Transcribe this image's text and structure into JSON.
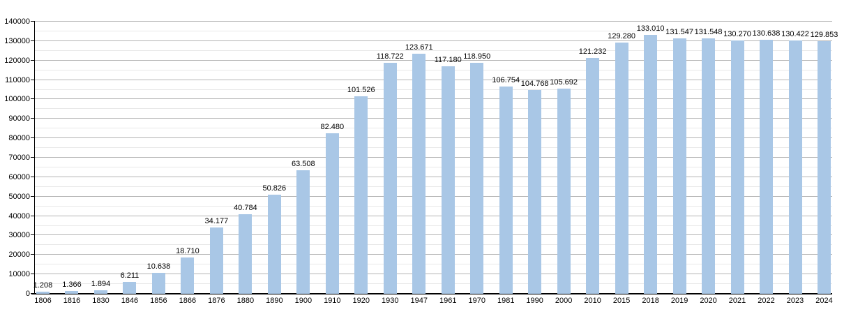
{
  "chart_data": {
    "type": "bar",
    "title": "",
    "xlabel": "",
    "ylabel": "",
    "categories": [
      "1806",
      "1816",
      "1830",
      "1846",
      "1856",
      "1866",
      "1876",
      "1880",
      "1890",
      "1900",
      "1910",
      "1920",
      "1930",
      "1947",
      "1961",
      "1970",
      "1981",
      "1990",
      "2000",
      "2010",
      "2015",
      "2018",
      "2019",
      "2020",
      "2021",
      "2022",
      "2023",
      "2024"
    ],
    "values": [
      1208,
      1366,
      1894,
      6211,
      10638,
      18710,
      34177,
      40784,
      50826,
      63508,
      82480,
      101526,
      118722,
      123671,
      117180,
      118950,
      106754,
      104768,
      105692,
      121232,
      129280,
      133010,
      131547,
      131548,
      130270,
      130638,
      130422,
      129853
    ],
    "value_labels": [
      "1.208",
      "1.366",
      "1.894",
      "6.211",
      "10.638",
      "18.710",
      "34.177",
      "40.784",
      "50.826",
      "63.508",
      "82.480",
      "101.526",
      "118.722",
      "123.671",
      "117.180",
      "118.950",
      "106.754",
      "104.768",
      "105.692",
      "121.232",
      "129.280",
      "133.010",
      "131.547",
      "131.548",
      "130.270",
      "130.638",
      "130.422",
      "129.853"
    ],
    "ylim": [
      0,
      140000
    ],
    "ytick_step": 10000,
    "minor_step": 5000,
    "ytick_labels": [
      "0",
      "10000",
      "20000",
      "30000",
      "40000",
      "50000",
      "60000",
      "70000",
      "80000",
      "90000",
      "100000",
      "110000",
      "120000",
      "130000",
      "140000"
    ],
    "grid": "on",
    "legend": "none",
    "colors": {
      "bar": "#a9c7e6",
      "grid_major": "#b3b3b3",
      "grid_minor": "#e8e8e8",
      "axis": "#000000",
      "text": "#000000",
      "background": "#ffffff"
    }
  }
}
